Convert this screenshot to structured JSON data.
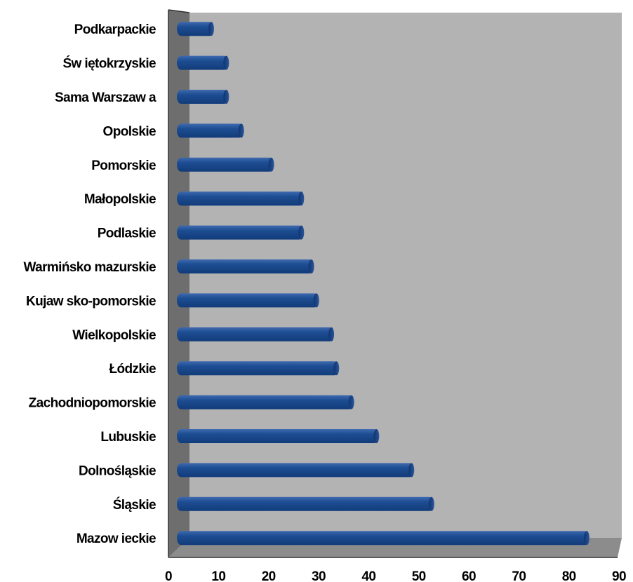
{
  "chart_data": {
    "type": "bar",
    "orientation": "horizontal",
    "title": "",
    "xlabel": "",
    "ylabel": "",
    "categories": [
      "Podkarpackie",
      "Św iętokrzyskie",
      "Sama Warszaw a",
      "Opolskie",
      "Pomorskie",
      "Małopolskie",
      "Podlaskie",
      "Warmińsko mazurskie",
      "Kujaw sko-pomorskie",
      "Wielkopolskie",
      "Łódzkie",
      "Zachodniopomorskie",
      "Lubuskie",
      "Dolnośląskie",
      "Śląskie",
      "Mazow ieckie"
    ],
    "values": [
      7,
      10,
      10,
      13,
      19,
      25,
      25,
      27,
      28,
      31,
      32,
      35,
      40,
      47,
      51,
      82
    ],
    "xlim": [
      0,
      90
    ],
    "ticks": [
      "0",
      "10",
      "20",
      "30",
      "40",
      "50",
      "60",
      "70",
      "80",
      "90"
    ],
    "grid": false,
    "legend": "none",
    "colors": {
      "bar": "#123c7a",
      "bar_highlight": "#3f6ab0",
      "plot_background": "#b3b3b3",
      "floor": "#8c8c8c",
      "side_wall": "#6e6e6e"
    }
  }
}
